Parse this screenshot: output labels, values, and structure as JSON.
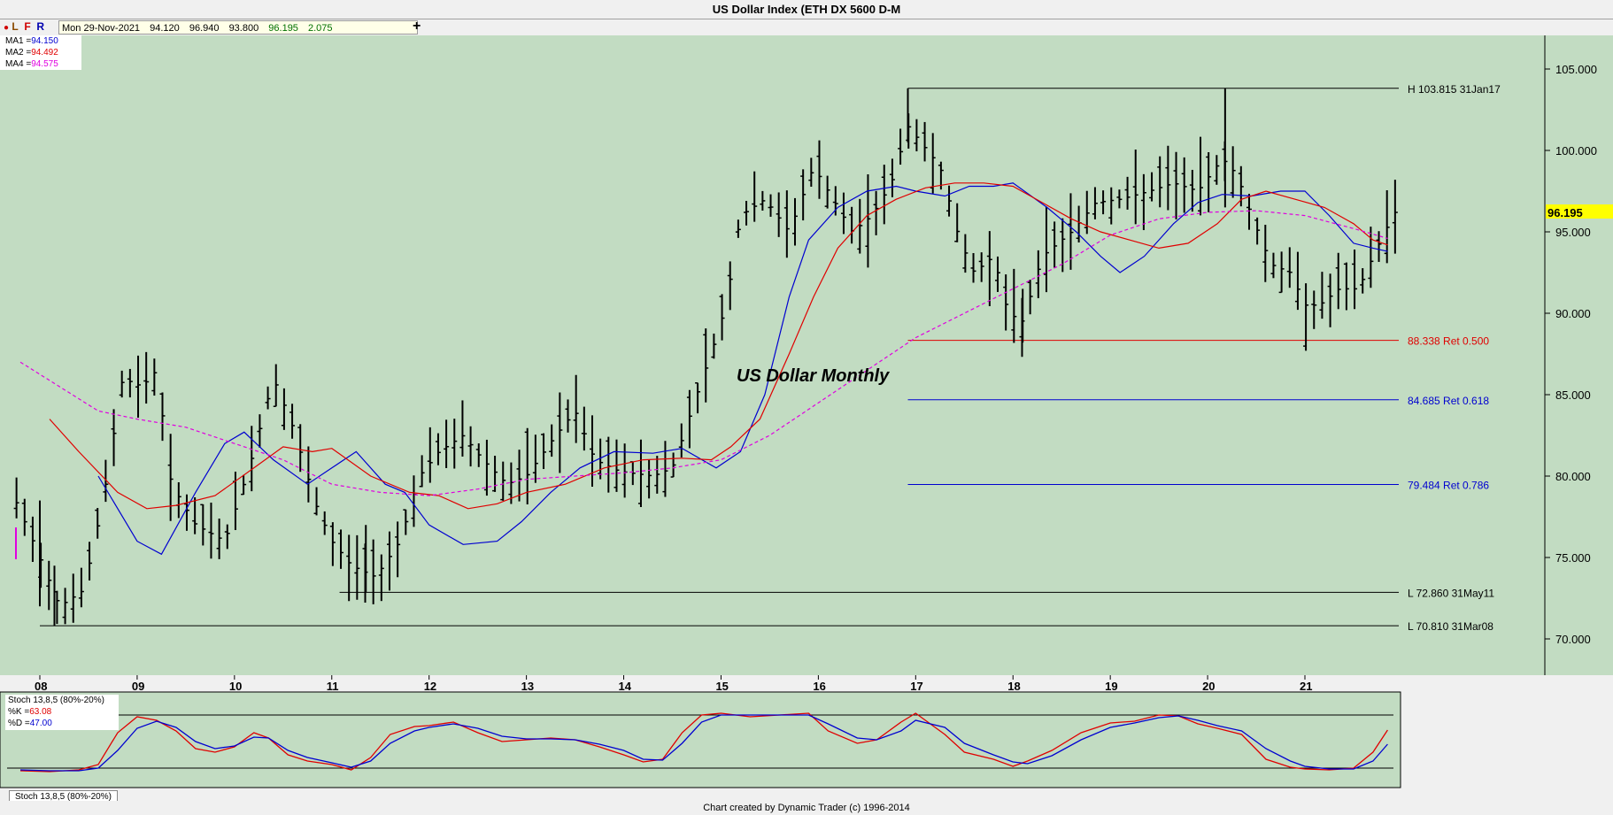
{
  "window": {
    "title": "US Dollar Index (ETH DX 5600 D-M"
  },
  "toolbar": {
    "flags": [
      "L",
      "F",
      "R"
    ],
    "quote": {
      "date": "Mon 29-Nov-2021",
      "open": "94.120",
      "high": "96.940",
      "low": "93.800",
      "close": "96.195",
      "change": "2.075"
    },
    "add_label": "+"
  },
  "moving_averages": [
    {
      "label": "MA1 =",
      "value": "94.150",
      "color": "#0000d0"
    },
    {
      "label": "MA2 =",
      "value": "94.492",
      "color": "#e00000"
    },
    {
      "label": "MA4 =",
      "value": "94.575",
      "color": "#e000e0"
    }
  ],
  "stoch_panel": {
    "title": "Stoch 13,8,5 (80%-20%)",
    "k_label": "%K =",
    "k_value": "63.08",
    "d_label": "%D =",
    "d_value": "47.00",
    "tab_label": "Stoch 13,8,5 (80%-20%)"
  },
  "footer": {
    "text": "Chart created by Dynamic Trader  (c) 1996-2014"
  },
  "colors": {
    "background": "#c2dcc2",
    "price_bars": "#000000",
    "ma_blue": "#0000d0",
    "ma_red": "#e00000",
    "ma_magenta": "#e000e0",
    "last_price_box": "#ffff00",
    "ret_500": "#e00000",
    "ret_618": "#0000d0",
    "ret_786": "#0000d0"
  },
  "chart_data": {
    "type": "ohlc",
    "title": "US Dollar Index (ETH DX 5600 D-M",
    "annotation": "US Dollar Monthly",
    "x_tick_labels": [
      "08",
      "09",
      "10",
      "11",
      "12",
      "13",
      "14",
      "15",
      "16",
      "17",
      "18",
      "19",
      "20",
      "21"
    ],
    "x_range": [
      2007.75,
      2021.95
    ],
    "y_ticks": [
      "70.000",
      "75.000",
      "80.000",
      "85.000",
      "90.000",
      "95.000",
      "100.000",
      "105.000"
    ],
    "ylim": [
      67.5,
      106.5
    ],
    "last_price": "96.195",
    "levels": [
      {
        "label": "H 103.815 31Jan17",
        "value": 103.815,
        "x_start": 2016.92,
        "color": "#000000"
      },
      {
        "label": "88.338 Ret 0.500",
        "value": 88.338,
        "x_start": 2016.92,
        "color": "#e00000"
      },
      {
        "label": "84.685 Ret 0.618",
        "value": 84.685,
        "x_start": 2016.92,
        "color": "#0000d0"
      },
      {
        "label": "79.484 Ret 0.786",
        "value": 79.484,
        "x_start": 2016.92,
        "color": "#0000d0"
      },
      {
        "label": "L 72.860 31May11",
        "value": 72.86,
        "x_start": 2011.08,
        "color": "#000000"
      },
      {
        "label": "L 70.810 31Mar08",
        "value": 70.81,
        "x_start": 2008.0,
        "color": "#000000"
      }
    ],
    "series": [
      {
        "name": "MA1",
        "color": "#0000d0",
        "points": [
          [
            2008.6,
            80.0
          ],
          [
            2009.0,
            76.0
          ],
          [
            2009.25,
            75.2
          ],
          [
            2009.6,
            79.0
          ],
          [
            2009.9,
            82.0
          ],
          [
            2010.1,
            82.7
          ],
          [
            2010.4,
            81.0
          ],
          [
            2010.75,
            79.5
          ],
          [
            2011.0,
            80.5
          ],
          [
            2011.25,
            81.5
          ],
          [
            2011.55,
            79.5
          ],
          [
            2011.75,
            79.0
          ],
          [
            2012.0,
            77.0
          ],
          [
            2012.35,
            75.8
          ],
          [
            2012.7,
            76.0
          ],
          [
            2012.95,
            77.2
          ],
          [
            2013.25,
            79.0
          ],
          [
            2013.55,
            80.5
          ],
          [
            2013.9,
            81.5
          ],
          [
            2014.3,
            81.4
          ],
          [
            2014.6,
            81.7
          ],
          [
            2014.95,
            80.5
          ],
          [
            2015.2,
            81.5
          ],
          [
            2015.45,
            85.0
          ],
          [
            2015.7,
            91.0
          ],
          [
            2015.9,
            94.5
          ],
          [
            2016.2,
            96.5
          ],
          [
            2016.5,
            97.5
          ],
          [
            2016.8,
            97.8
          ],
          [
            2017.0,
            97.5
          ],
          [
            2017.3,
            97.2
          ],
          [
            2017.55,
            97.8
          ],
          [
            2017.8,
            97.8
          ],
          [
            2018.0,
            98.0
          ],
          [
            2018.35,
            96.5
          ],
          [
            2018.65,
            95.0
          ],
          [
            2018.9,
            93.5
          ],
          [
            2019.1,
            92.5
          ],
          [
            2019.35,
            93.5
          ],
          [
            2019.65,
            95.5
          ],
          [
            2019.9,
            96.8
          ],
          [
            2020.15,
            97.3
          ],
          [
            2020.45,
            97.2
          ],
          [
            2020.75,
            97.5
          ],
          [
            2021.0,
            97.5
          ],
          [
            2021.25,
            96.0
          ],
          [
            2021.5,
            94.3
          ],
          [
            2021.7,
            94.0
          ],
          [
            2021.85,
            93.8
          ]
        ]
      },
      {
        "name": "MA2",
        "color": "#e00000",
        "points": [
          [
            2008.1,
            83.5
          ],
          [
            2008.4,
            81.5
          ],
          [
            2008.8,
            79.0
          ],
          [
            2009.1,
            78.0
          ],
          [
            2009.4,
            78.2
          ],
          [
            2009.8,
            78.8
          ],
          [
            2010.2,
            80.5
          ],
          [
            2010.5,
            81.8
          ],
          [
            2010.8,
            81.5
          ],
          [
            2011.0,
            81.7
          ],
          [
            2011.4,
            80.0
          ],
          [
            2011.8,
            79.0
          ],
          [
            2012.1,
            78.8
          ],
          [
            2012.4,
            78.0
          ],
          [
            2012.7,
            78.3
          ],
          [
            2013.0,
            79.0
          ],
          [
            2013.4,
            79.5
          ],
          [
            2013.8,
            80.5
          ],
          [
            2014.2,
            81.0
          ],
          [
            2014.6,
            81.1
          ],
          [
            2014.9,
            81.0
          ],
          [
            2015.1,
            81.8
          ],
          [
            2015.4,
            83.5
          ],
          [
            2015.7,
            87.5
          ],
          [
            2015.95,
            91.0
          ],
          [
            2016.2,
            94.0
          ],
          [
            2016.5,
            96.0
          ],
          [
            2016.8,
            97.0
          ],
          [
            2017.1,
            97.7
          ],
          [
            2017.4,
            98.0
          ],
          [
            2017.7,
            98.0
          ],
          [
            2018.0,
            97.8
          ],
          [
            2018.3,
            96.8
          ],
          [
            2018.6,
            95.8
          ],
          [
            2018.9,
            95.0
          ],
          [
            2019.2,
            94.5
          ],
          [
            2019.5,
            94.0
          ],
          [
            2019.8,
            94.3
          ],
          [
            2020.1,
            95.5
          ],
          [
            2020.35,
            97.0
          ],
          [
            2020.6,
            97.5
          ],
          [
            2020.9,
            97.0
          ],
          [
            2021.2,
            96.5
          ],
          [
            2021.5,
            95.5
          ],
          [
            2021.7,
            94.5
          ],
          [
            2021.85,
            94.2
          ]
        ]
      },
      {
        "name": "MA4",
        "color": "#e000e0",
        "points": [
          [
            2007.8,
            87.0
          ],
          [
            2008.2,
            85.5
          ],
          [
            2008.6,
            84.0
          ],
          [
            2009.0,
            83.5
          ],
          [
            2009.5,
            83.0
          ],
          [
            2010.0,
            82.0
          ],
          [
            2010.5,
            81.0
          ],
          [
            2011.0,
            79.5
          ],
          [
            2011.5,
            79.0
          ],
          [
            2012.0,
            78.8
          ],
          [
            2012.5,
            79.2
          ],
          [
            2013.0,
            79.8
          ],
          [
            2013.5,
            80.0
          ],
          [
            2014.0,
            80.2
          ],
          [
            2014.5,
            80.5
          ],
          [
            2015.0,
            81.0
          ],
          [
            2015.5,
            82.5
          ],
          [
            2016.0,
            84.5
          ],
          [
            2016.5,
            86.5
          ],
          [
            2017.0,
            88.5
          ],
          [
            2017.5,
            90.0
          ],
          [
            2018.0,
            91.5
          ],
          [
            2018.5,
            93.0
          ],
          [
            2019.0,
            94.8
          ],
          [
            2019.5,
            95.8
          ],
          [
            2020.0,
            96.2
          ],
          [
            2020.5,
            96.3
          ],
          [
            2021.0,
            96.0
          ],
          [
            2021.5,
            95.2
          ],
          [
            2021.85,
            94.6
          ]
        ]
      }
    ],
    "stochastic": {
      "upper": 80,
      "lower": 20,
      "k": [
        [
          2007.8,
          17
        ],
        [
          2008.1,
          16
        ],
        [
          2008.4,
          18
        ],
        [
          2008.6,
          24
        ],
        [
          2008.8,
          60
        ],
        [
          2009.0,
          78
        ],
        [
          2009.2,
          74
        ],
        [
          2009.4,
          62
        ],
        [
          2009.6,
          42
        ],
        [
          2009.8,
          38
        ],
        [
          2010.0,
          44
        ],
        [
          2010.2,
          60
        ],
        [
          2010.35,
          54
        ],
        [
          2010.55,
          35
        ],
        [
          2010.75,
          28
        ],
        [
          2011.0,
          24
        ],
        [
          2011.2,
          18
        ],
        [
          2011.4,
          32
        ],
        [
          2011.6,
          58
        ],
        [
          2011.85,
          67
        ],
        [
          2012.0,
          68
        ],
        [
          2012.25,
          72
        ],
        [
          2012.5,
          60
        ],
        [
          2012.75,
          50
        ],
        [
          2013.0,
          52
        ],
        [
          2013.25,
          54
        ],
        [
          2013.5,
          52
        ],
        [
          2013.75,
          44
        ],
        [
          2014.0,
          35
        ],
        [
          2014.2,
          27
        ],
        [
          2014.4,
          30
        ],
        [
          2014.6,
          60
        ],
        [
          2014.8,
          80
        ],
        [
          2015.0,
          82
        ],
        [
          2015.3,
          78
        ],
        [
          2015.6,
          80
        ],
        [
          2015.9,
          82
        ],
        [
          2016.1,
          62
        ],
        [
          2016.4,
          48
        ],
        [
          2016.6,
          52
        ],
        [
          2016.85,
          72
        ],
        [
          2017.0,
          82
        ],
        [
          2017.3,
          58
        ],
        [
          2017.5,
          38
        ],
        [
          2017.8,
          30
        ],
        [
          2018.0,
          22
        ],
        [
          2018.15,
          28
        ],
        [
          2018.4,
          40
        ],
        [
          2018.7,
          60
        ],
        [
          2019.0,
          71
        ],
        [
          2019.25,
          73
        ],
        [
          2019.5,
          80
        ],
        [
          2019.7,
          79
        ],
        [
          2019.9,
          70
        ],
        [
          2020.1,
          65
        ],
        [
          2020.35,
          58
        ],
        [
          2020.6,
          30
        ],
        [
          2020.85,
          21
        ],
        [
          2021.0,
          19
        ],
        [
          2021.25,
          18
        ],
        [
          2021.5,
          20
        ],
        [
          2021.7,
          38
        ],
        [
          2021.85,
          63
        ]
      ],
      "d": [
        [
          2007.8,
          18
        ],
        [
          2008.1,
          17
        ],
        [
          2008.4,
          17
        ],
        [
          2008.6,
          20
        ],
        [
          2008.8,
          40
        ],
        [
          2009.0,
          65
        ],
        [
          2009.2,
          73
        ],
        [
          2009.4,
          66
        ],
        [
          2009.6,
          50
        ],
        [
          2009.8,
          42
        ],
        [
          2010.0,
          45
        ],
        [
          2010.2,
          55
        ],
        [
          2010.35,
          54
        ],
        [
          2010.55,
          40
        ],
        [
          2010.75,
          32
        ],
        [
          2011.0,
          26
        ],
        [
          2011.2,
          21
        ],
        [
          2011.4,
          28
        ],
        [
          2011.6,
          48
        ],
        [
          2011.85,
          62
        ],
        [
          2012.0,
          66
        ],
        [
          2012.25,
          70
        ],
        [
          2012.5,
          65
        ],
        [
          2012.75,
          56
        ],
        [
          2013.0,
          53
        ],
        [
          2013.25,
          53
        ],
        [
          2013.5,
          52
        ],
        [
          2013.75,
          47
        ],
        [
          2014.0,
          40
        ],
        [
          2014.2,
          30
        ],
        [
          2014.4,
          29
        ],
        [
          2014.6,
          48
        ],
        [
          2014.8,
          72
        ],
        [
          2015.0,
          80
        ],
        [
          2015.3,
          80
        ],
        [
          2015.6,
          80
        ],
        [
          2015.9,
          80
        ],
        [
          2016.1,
          70
        ],
        [
          2016.4,
          54
        ],
        [
          2016.6,
          52
        ],
        [
          2016.85,
          62
        ],
        [
          2017.0,
          74
        ],
        [
          2017.3,
          66
        ],
        [
          2017.5,
          48
        ],
        [
          2017.8,
          35
        ],
        [
          2018.0,
          27
        ],
        [
          2018.15,
          25
        ],
        [
          2018.4,
          34
        ],
        [
          2018.7,
          52
        ],
        [
          2019.0,
          66
        ],
        [
          2019.25,
          71
        ],
        [
          2019.5,
          77
        ],
        [
          2019.7,
          79
        ],
        [
          2019.9,
          74
        ],
        [
          2020.1,
          68
        ],
        [
          2020.35,
          62
        ],
        [
          2020.6,
          42
        ],
        [
          2020.85,
          28
        ],
        [
          2021.0,
          22
        ],
        [
          2021.25,
          19
        ],
        [
          2021.5,
          19
        ],
        [
          2021.7,
          28
        ],
        [
          2021.85,
          47
        ]
      ]
    }
  }
}
